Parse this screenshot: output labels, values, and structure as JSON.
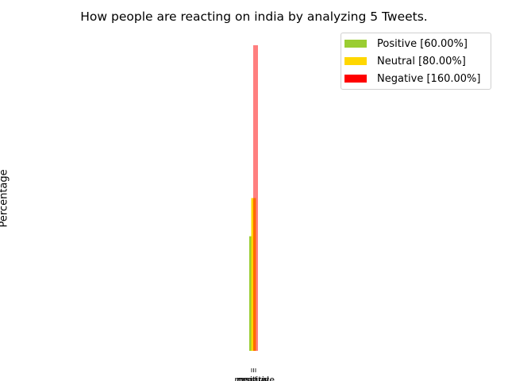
{
  "chart_data": {
    "type": "bar",
    "title": "How people are reacting on india by analyzing 5 Tweets.",
    "xlabel": "",
    "ylabel": "Percentage",
    "axes_visible": false,
    "grid": false,
    "legend_position": "top-right",
    "categories": [
      "positive",
      "neutral",
      "negative"
    ],
    "series": [
      {
        "name": "Positive [60.00%]",
        "value": 60,
        "color": "#9acd32",
        "alpha": 1.0
      },
      {
        "name": "Neutral [80.00%]",
        "value": 80,
        "color": "#ffd700",
        "alpha": 1.0
      },
      {
        "name": "Negative [160.00%]",
        "value": 160,
        "color": "#ff0000",
        "alpha": 0.5
      }
    ],
    "ylim": [
      0,
      160
    ]
  }
}
